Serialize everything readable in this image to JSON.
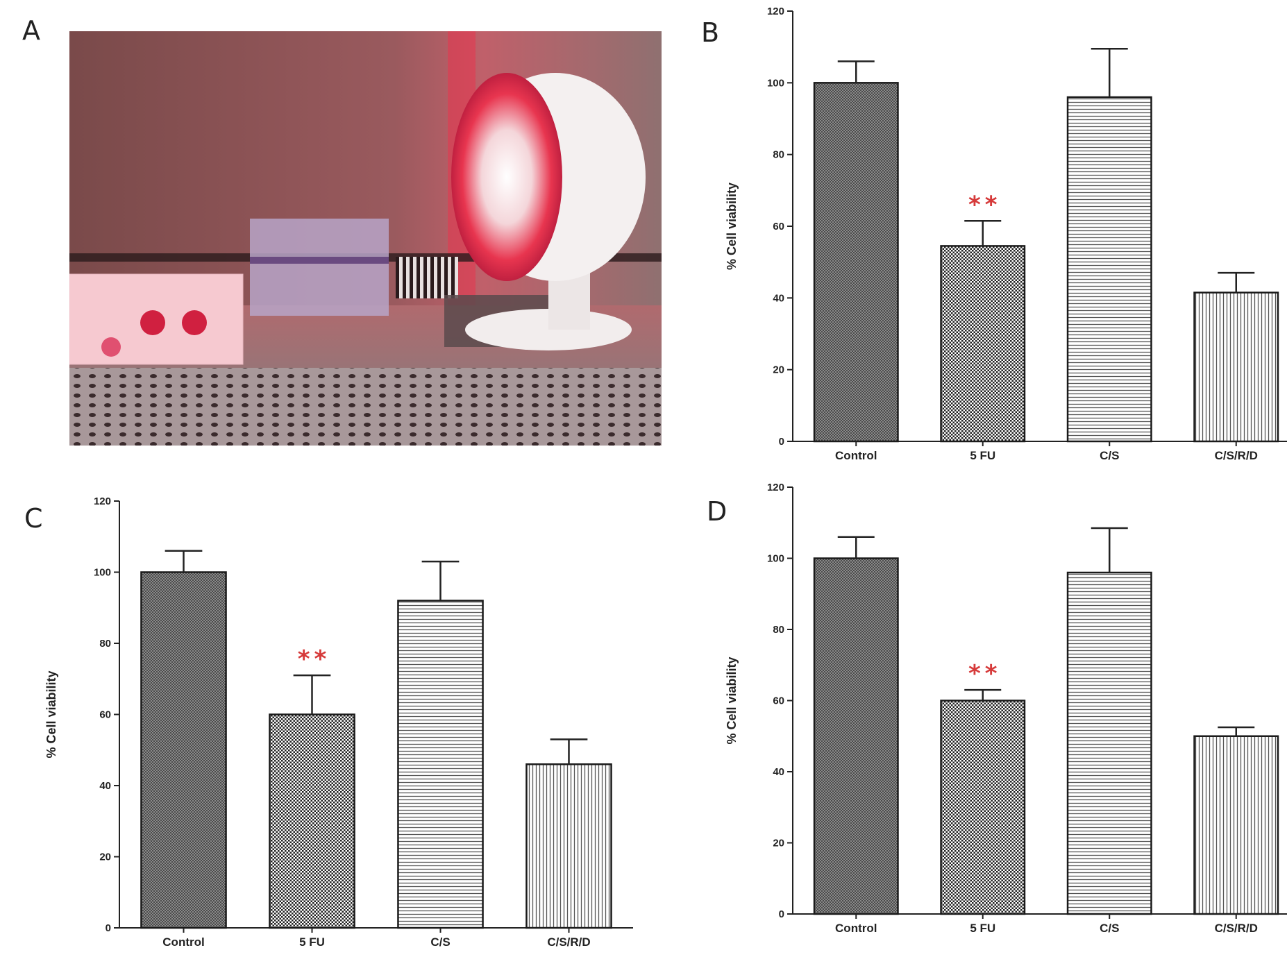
{
  "panel_labels": [
    "A",
    "B",
    "C",
    "D"
  ],
  "colors": {
    "bar_stroke": "#1a1a1a",
    "bar_dark": "#3a3a3a",
    "annotation": "#d63a3a",
    "photo_glow": "#e8354f"
  },
  "photo": {
    "icon": "photo-incubator-red-light"
  },
  "chart_data": [
    {
      "panel": "B",
      "type": "bar",
      "categories": [
        "Control",
        "5 FU",
        "C/S",
        "C/S/R/D"
      ],
      "values": [
        100,
        54.5,
        96,
        41.5
      ],
      "errors": [
        6,
        7,
        13.5,
        5.5
      ],
      "patterns": [
        "crosshatch",
        "checker",
        "horizontal",
        "vertical"
      ],
      "annotations": [
        {
          "category": "5 FU",
          "text": "**"
        }
      ],
      "ylabel": "% Cell viability",
      "ylim": [
        0,
        120
      ],
      "yticks": [
        0,
        20,
        40,
        60,
        80,
        100,
        120
      ]
    },
    {
      "panel": "C",
      "type": "bar",
      "categories": [
        "Control",
        "5 FU",
        "C/S",
        "C/S/R/D"
      ],
      "values": [
        100,
        60,
        92,
        46
      ],
      "errors": [
        6,
        11,
        11,
        7
      ],
      "patterns": [
        "crosshatch",
        "checker",
        "horizontal",
        "vertical"
      ],
      "annotations": [
        {
          "category": "5 FU",
          "text": "**"
        }
      ],
      "ylabel": "% Cell viability",
      "ylim": [
        0,
        120
      ],
      "yticks": [
        0,
        20,
        40,
        60,
        80,
        100,
        120
      ]
    },
    {
      "panel": "D",
      "type": "bar",
      "categories": [
        "Control",
        "5 FU",
        "C/S",
        "C/S/R/D"
      ],
      "values": [
        100,
        60,
        96,
        50
      ],
      "errors": [
        6,
        3,
        12.5,
        2.5
      ],
      "patterns": [
        "crosshatch",
        "checker",
        "horizontal",
        "vertical"
      ],
      "annotations": [
        {
          "category": "5 FU",
          "text": "**"
        }
      ],
      "ylabel": "% Cell viability",
      "ylim": [
        0,
        120
      ],
      "yticks": [
        0,
        20,
        40,
        60,
        80,
        100,
        120
      ]
    }
  ]
}
